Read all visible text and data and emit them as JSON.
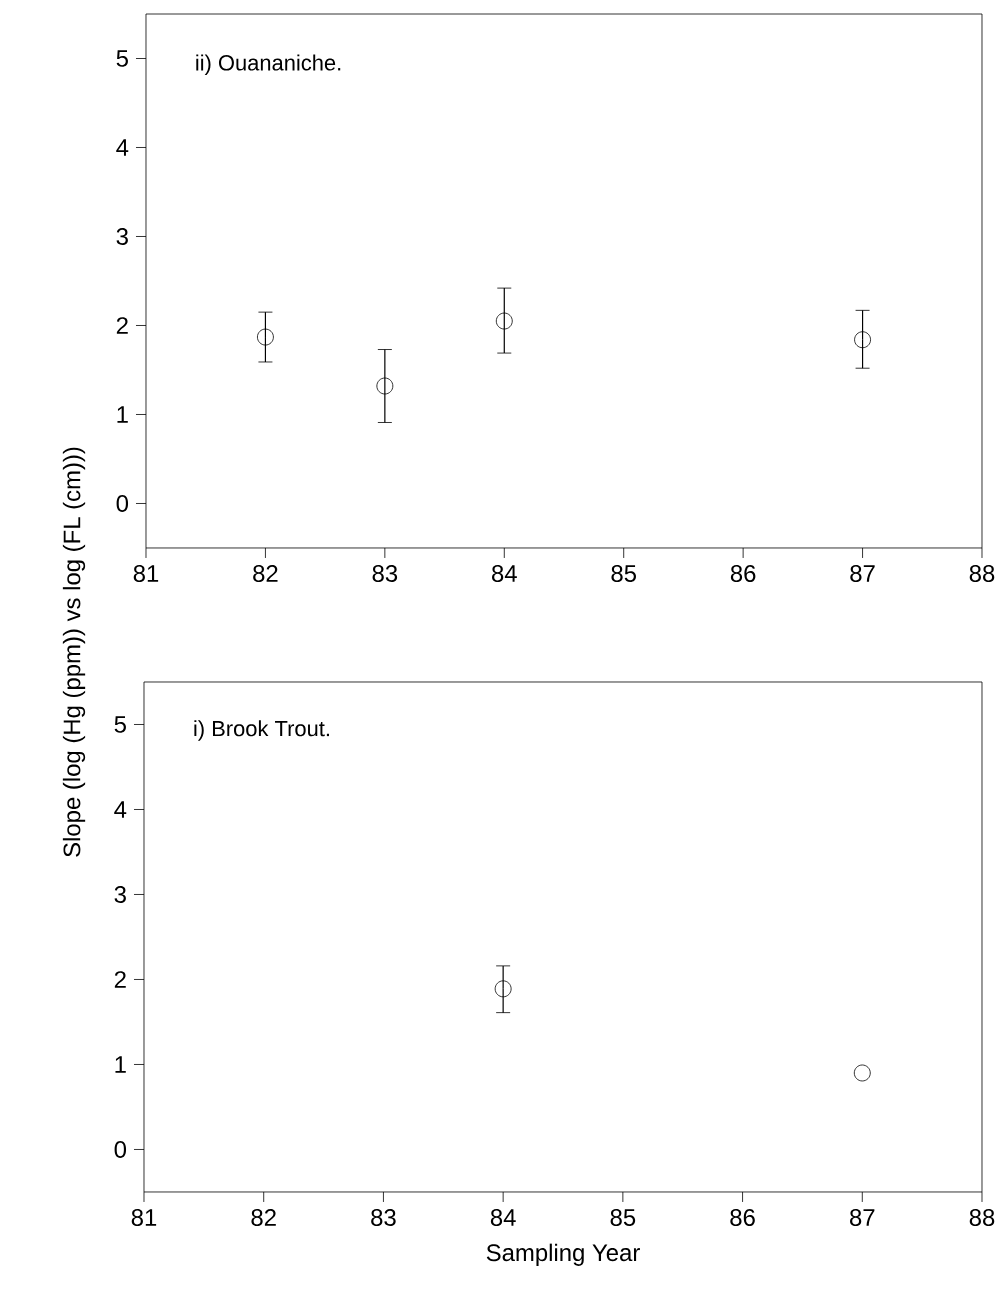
{
  "chart_data": [
    {
      "type": "scatter",
      "title": "ii) Ouananiche.",
      "ylabel": "Slope (log (Hg (ppm)) vs log (FL (cm)))",
      "x": [
        82,
        83,
        84,
        87
      ],
      "values": [
        1.87,
        1.32,
        2.05,
        1.84
      ],
      "errors": [
        [
          1.59,
          2.15
        ],
        [
          0.91,
          1.73
        ],
        [
          1.69,
          2.42
        ],
        [
          1.52,
          2.17
        ]
      ],
      "color": "#000000",
      "marker": "circle",
      "xlim": [
        81,
        88
      ],
      "xticks": [
        81,
        82,
        83,
        84,
        85,
        86,
        87,
        88
      ],
      "ylim": [
        -0.5,
        5.5
      ],
      "yticks": [
        0,
        1,
        2,
        3,
        4,
        5
      ]
    },
    {
      "type": "scatter",
      "title": "i) Brook Trout.",
      "xlabel": "Sampling Year",
      "x": [
        84,
        87
      ],
      "values": [
        1.89,
        0.9
      ],
      "errors": [
        [
          1.61,
          2.16
        ],
        null
      ],
      "color": "#000000",
      "marker": "circle",
      "xlim": [
        81,
        88
      ],
      "xticks": [
        81,
        82,
        83,
        84,
        85,
        86,
        87,
        88
      ],
      "ylim": [
        -0.5,
        5.5
      ],
      "yticks": [
        0,
        1,
        2,
        3,
        4,
        5
      ]
    }
  ]
}
